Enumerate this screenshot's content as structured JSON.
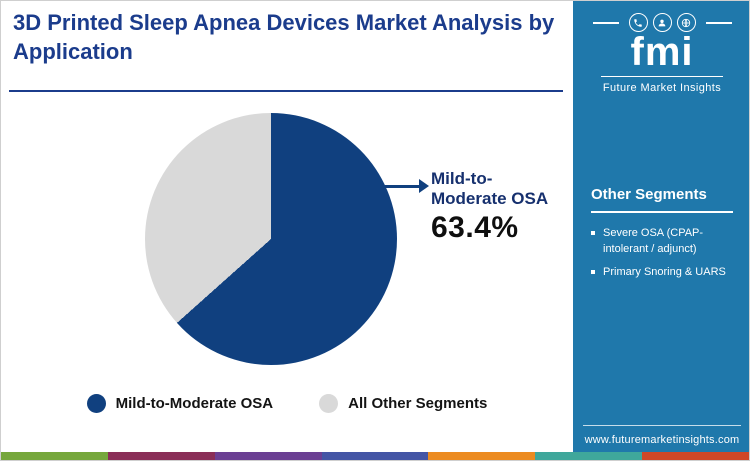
{
  "page": {
    "title": "3D Printed Sleep Apnea Devices Market Analysis by Application"
  },
  "brand": {
    "title_color": "#1b3c8c",
    "navy": "#10407f",
    "sidebar_blue": "#1f78ab"
  },
  "chart_data": {
    "type": "pie",
    "title": "3D Printed Sleep Apnea Devices Market Analysis by Application",
    "segments": [
      {
        "label": "Mild-to-Moderate OSA",
        "value": 63.4,
        "color": "#10407f"
      },
      {
        "label": "All Other Segments",
        "value": 36.6,
        "color": "#d9d9d9"
      }
    ],
    "callout": {
      "line1": "Mild-to-",
      "line2": "Moderate OSA",
      "value_label": "63.4%"
    },
    "legend_position": "bottom",
    "start_angle_deg": 0,
    "direction": "clockwise"
  },
  "legend": {
    "items": [
      {
        "label": "Mild-to-Moderate OSA",
        "color": "#10407f"
      },
      {
        "label": "All Other Segments",
        "color": "#d9d9d9"
      }
    ]
  },
  "sidebar": {
    "bg": "#1f78ab",
    "logo": {
      "text": "fmi",
      "subtext": "Future Market Insights"
    },
    "section_title": "Other Segments",
    "items": [
      "Severe OSA (CPAP-intolerant / adjunct)",
      "Primary Snoring & UARS"
    ],
    "website": "www.futuremarketinsights.com"
  },
  "footer_strip": {
    "colors": [
      "#76a73c",
      "#8a2e57",
      "#6b3f93",
      "#4455a5",
      "#ec8b21",
      "#3fa79b",
      "#cf4727"
    ]
  }
}
